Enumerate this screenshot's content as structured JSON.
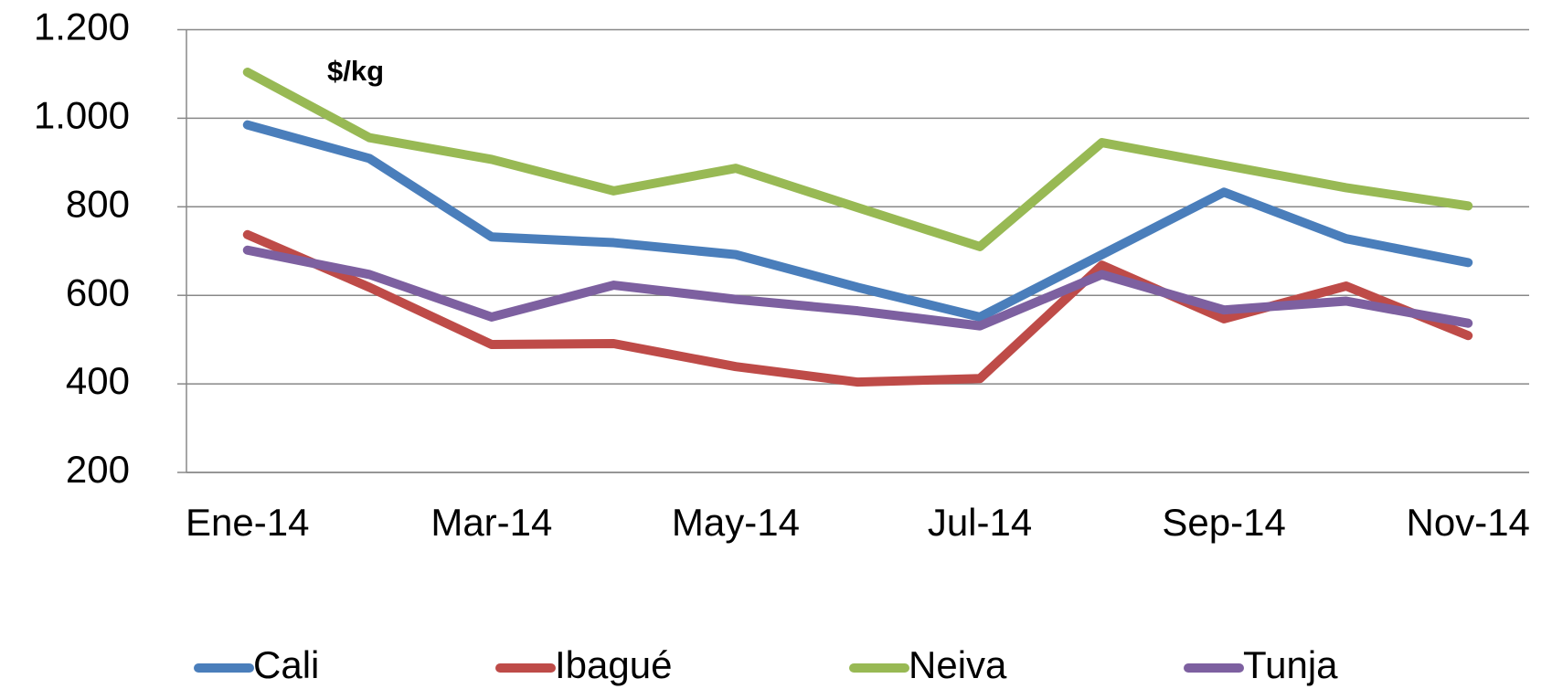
{
  "chart_data": {
    "type": "line",
    "annotation": "$/kg",
    "categories": [
      "Ene-14",
      null,
      "Mar-14",
      null,
      "May-14",
      null,
      "Jul-14",
      null,
      "Sep-14",
      null,
      "Nov-14"
    ],
    "series": [
      {
        "name": "Cali",
        "color": "#4a7ebb",
        "values": [
          985,
          909,
          732,
          719,
          692,
          618,
          551,
          692,
          833,
          728,
          674
        ]
      },
      {
        "name": "Ibagué",
        "color": "#be4b48",
        "values": [
          737,
          618,
          489,
          491,
          439,
          404,
          412,
          668,
          547,
          621,
          509
        ]
      },
      {
        "name": "Neiva",
        "color": "#98b954",
        "values": [
          1104,
          956,
          907,
          836,
          887,
          798,
          710,
          945,
          894,
          843,
          802
        ]
      },
      {
        "name": "Tunja",
        "color": "#7d60a0",
        "values": [
          702,
          647,
          551,
          623,
          591,
          565,
          531,
          647,
          567,
          587,
          537
        ]
      }
    ],
    "ylim": [
      200,
      1200
    ],
    "yticks": [
      200,
      400,
      600,
      800,
      {
        "value": 1000,
        "label": "1.000"
      },
      {
        "value": 1200,
        "label": "1.200"
      }
    ],
    "grid": true,
    "legend": "bottom"
  }
}
